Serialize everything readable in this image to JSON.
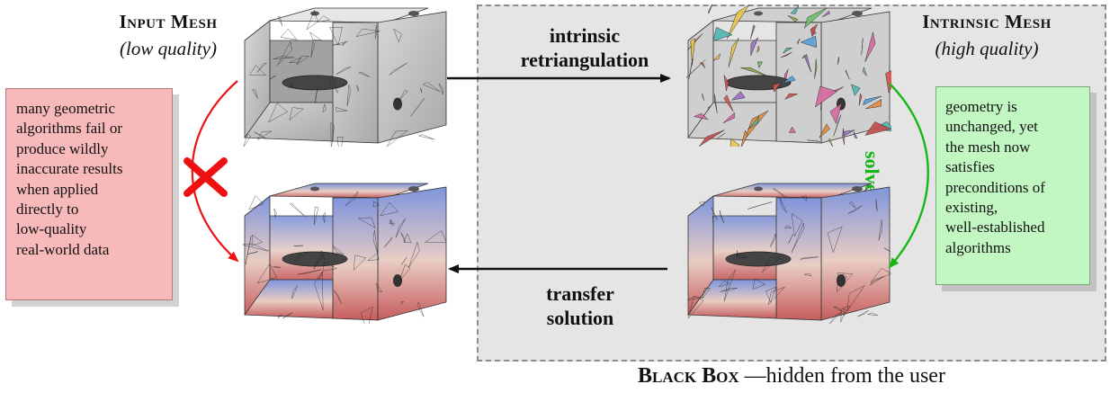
{
  "input_mesh": {
    "title": "Input Mesh",
    "subtitle": "(low quality)"
  },
  "intrinsic_mesh": {
    "title": "Intrinsic Mesh",
    "subtitle": "(high quality)"
  },
  "arrows": {
    "retriangulation": [
      "intrinsic",
      "retriangulation"
    ],
    "transfer": [
      "transfer",
      "solution"
    ],
    "solve": "solve"
  },
  "failure_note": {
    "lines": [
      "many geometric",
      "algorithms fail or",
      "produce wildly",
      "inaccurate results",
      "when applied",
      "directly to",
      "low-quality",
      "real-world data"
    ]
  },
  "success_note": {
    "lines": [
      "geometry is",
      "unchanged, yet",
      "the mesh now",
      "satisfies",
      "preconditions of",
      "existing,",
      "well-established",
      "algorithms"
    ]
  },
  "caption": {
    "black_box": "Black Box",
    "rest": " —hidden from the user"
  },
  "colors": {
    "fail_arrow": "#ee1111",
    "solve_arrow": "#16b816",
    "fail_note_bg": "#f7b9b9",
    "success_note_bg": "#c2f7c2",
    "black_box_bg": "#e5e5e5",
    "solution_top": "#7f95dc",
    "solution_bottom": "#c75d5e"
  },
  "icons": [
    "fail-cross-icon"
  ]
}
